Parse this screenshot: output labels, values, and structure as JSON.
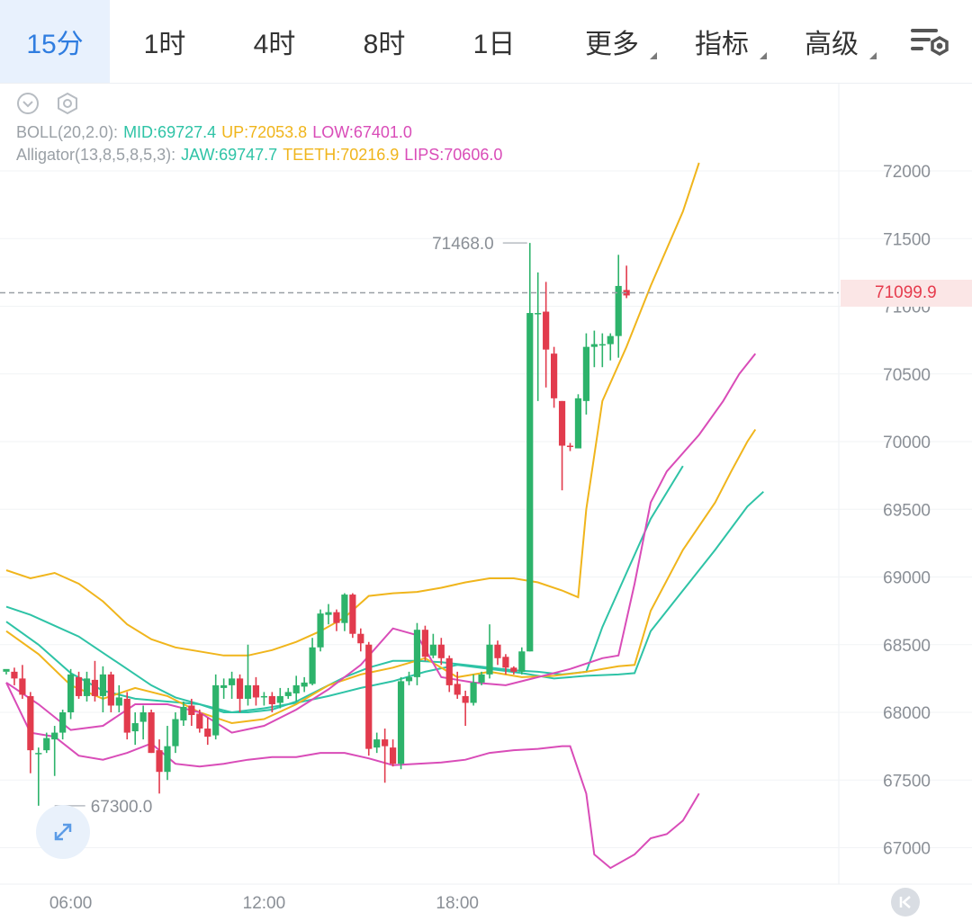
{
  "tabs": [
    {
      "label": "15分",
      "active": true,
      "dropdown": false
    },
    {
      "label": "1时",
      "active": false,
      "dropdown": false
    },
    {
      "label": "4时",
      "active": false,
      "dropdown": false
    },
    {
      "label": "8时",
      "active": false,
      "dropdown": false
    },
    {
      "label": "1日",
      "active": false,
      "dropdown": false
    },
    {
      "label": "更多",
      "active": false,
      "dropdown": true
    },
    {
      "label": "指标",
      "active": false,
      "dropdown": true
    },
    {
      "label": "高级",
      "active": false,
      "dropdown": true
    }
  ],
  "icons": {
    "settings": "chart-settings-icon",
    "collapse": "chevron-down-circle-icon",
    "indicator_settings": "hexagon-gear-icon",
    "expand": "expand-arrows-icon",
    "scroll_to_latest": "skip-to-latest-icon"
  },
  "legend": {
    "boll": {
      "name": "BOLL(20,2.0):",
      "mid": "MID:69727.4",
      "up": "UP:72053.8",
      "low": "LOW:67401.0"
    },
    "alligator": {
      "name": "Alligator(13,8,5,8,5,3):",
      "jaw": "JAW:69747.7",
      "teeth": "TEETH:70216.9",
      "lips": "LIPS:70606.0"
    }
  },
  "colors": {
    "up": "#2db36b",
    "down": "#e23b4d",
    "mid": "#2ec3a6",
    "band": "#f0b51c",
    "low": "#d94cb8",
    "jaw": "#2ec3a6",
    "teeth": "#f0b51c",
    "lips": "#d94cb8",
    "text_muted": "#9aa0a6",
    "current_price": "#e63b4d"
  },
  "current_price": "71099.9",
  "chart_data": {
    "type": "candlestick",
    "y_ticks": [
      72000,
      71500,
      71000,
      70500,
      70000,
      69500,
      69000,
      68500,
      68000,
      67500,
      67000
    ],
    "y_tick_labels": [
      "72000",
      "71500",
      "71000",
      "70500",
      "70000",
      "69500",
      "69000",
      "68500",
      "68000",
      "67500",
      "67000"
    ],
    "ylim": [
      66700,
      72500
    ],
    "x_labels": [
      "06:00",
      "12:00",
      "18:00"
    ],
    "x_label_bar_index": [
      8,
      32,
      56
    ],
    "high_label": "71468.0",
    "low_label": "67300.0",
    "current_price": 71099.9,
    "candles": [
      [
        68300,
        68320,
        68300,
        68280
      ],
      [
        68300,
        68250,
        68330,
        68200
      ],
      [
        68250,
        68130,
        68350,
        68100
      ],
      [
        68120,
        67720,
        68150,
        67550
      ],
      [
        67700,
        67700,
        67740,
        67310
      ],
      [
        67720,
        67810,
        67850,
        67700
      ],
      [
        67800,
        67850,
        67900,
        67530
      ],
      [
        67850,
        68000,
        68020,
        67800
      ],
      [
        68000,
        68280,
        68320,
        67950
      ],
      [
        68260,
        68120,
        68300,
        68100
      ],
      [
        68120,
        68250,
        68300,
        68080
      ],
      [
        68240,
        68120,
        68380,
        68080
      ],
      [
        68120,
        68280,
        68340,
        68000
      ],
      [
        68280,
        68050,
        68300,
        68000
      ],
      [
        68050,
        68110,
        68200,
        68000
      ],
      [
        68100,
        67850,
        68150,
        67800
      ],
      [
        67860,
        67920,
        68000,
        67760
      ],
      [
        67930,
        68000,
        68050,
        67800
      ],
      [
        68000,
        67700,
        68020,
        67700
      ],
      [
        67720,
        67560,
        67800,
        67400
      ],
      [
        67560,
        67750,
        67900,
        67500
      ],
      [
        67750,
        67950,
        68000,
        67700
      ],
      [
        67940,
        68040,
        68080,
        67900
      ],
      [
        68050,
        67980,
        68100,
        67900
      ],
      [
        67990,
        67880,
        68020,
        67850
      ],
      [
        67880,
        67820,
        67960,
        67760
      ],
      [
        67830,
        68200,
        68280,
        67800
      ],
      [
        68180,
        68200,
        68250,
        68100
      ],
      [
        68200,
        68250,
        68300,
        68100
      ],
      [
        68250,
        68100,
        68280,
        68000
      ],
      [
        68100,
        68200,
        68500,
        68050
      ],
      [
        68200,
        68110,
        68260,
        68050
      ],
      [
        68110,
        68120,
        68150,
        68050
      ],
      [
        68120,
        68060,
        68150,
        68000
      ],
      [
        68070,
        68120,
        68180,
        68030
      ],
      [
        68120,
        68150,
        68180,
        68100
      ],
      [
        68140,
        68200,
        68270,
        68080
      ],
      [
        68190,
        68220,
        68260,
        68150
      ],
      [
        68210,
        68480,
        68550,
        68200
      ],
      [
        68480,
        68730,
        68760,
        68450
      ],
      [
        68720,
        68740,
        68800,
        68650
      ],
      [
        68740,
        68660,
        68760,
        68600
      ],
      [
        68660,
        68870,
        68880,
        68600
      ],
      [
        68870,
        68580,
        68880,
        68550
      ],
      [
        68580,
        68510,
        68620,
        68450
      ],
      [
        68500,
        67730,
        68520,
        67680
      ],
      [
        67740,
        67800,
        67850,
        67700
      ],
      [
        67800,
        67750,
        67880,
        67480
      ],
      [
        67740,
        67620,
        67800,
        67600
      ],
      [
        67620,
        68230,
        68260,
        67580
      ],
      [
        68230,
        68260,
        68300,
        68200
      ],
      [
        68260,
        68610,
        68660,
        68200
      ],
      [
        68610,
        68410,
        68640,
        68380
      ],
      [
        68420,
        68500,
        68580,
        68400
      ],
      [
        68500,
        68400,
        68550,
        68350
      ],
      [
        68400,
        68200,
        68420,
        68150
      ],
      [
        68210,
        68130,
        68300,
        68100
      ],
      [
        68120,
        68070,
        68160,
        67900
      ],
      [
        68070,
        68220,
        68280,
        68050
      ],
      [
        68220,
        68280,
        68300,
        68200
      ],
      [
        68280,
        68500,
        68650,
        68250
      ],
      [
        68500,
        68400,
        68530,
        68350
      ],
      [
        68410,
        68330,
        68430,
        68280
      ],
      [
        68330,
        68300,
        68340,
        68280
      ],
      [
        68300,
        68450,
        68480,
        68280
      ],
      [
        68450,
        70950,
        71468,
        68450
      ],
      [
        70950,
        70950,
        71250,
        70300
      ],
      [
        70960,
        70680,
        71180,
        70400
      ],
      [
        70650,
        70320,
        70700,
        70250
      ],
      [
        70300,
        69970,
        70300,
        69640
      ],
      [
        69970,
        69960,
        69990,
        69930
      ],
      [
        69950,
        70320,
        70350,
        69950
      ],
      [
        70300,
        70700,
        70800,
        70200
      ],
      [
        70700,
        70720,
        70820,
        70550
      ],
      [
        70720,
        70720,
        70800,
        70550
      ],
      [
        70720,
        70780,
        70800,
        70600
      ],
      [
        70780,
        71150,
        71380,
        70620
      ],
      [
        71120,
        71080,
        71300,
        71060
      ]
    ],
    "boll": {
      "mid": [
        [
          0,
          68780
        ],
        [
          3,
          68720
        ],
        [
          6,
          68640
        ],
        [
          9,
          68560
        ],
        [
          12,
          68440
        ],
        [
          15,
          68320
        ],
        [
          18,
          68200
        ],
        [
          21,
          68110
        ],
        [
          24,
          68060
        ],
        [
          27,
          68000
        ],
        [
          30,
          68000
        ],
        [
          33,
          68020
        ],
        [
          36,
          68080
        ],
        [
          39,
          68170
        ],
        [
          42,
          68260
        ],
        [
          45,
          68330
        ],
        [
          48,
          68380
        ],
        [
          51,
          68380
        ],
        [
          54,
          68370
        ],
        [
          57,
          68350
        ],
        [
          60,
          68330
        ],
        [
          63,
          68310
        ],
        [
          66,
          68300
        ],
        [
          69,
          68280
        ],
        [
          72,
          68300
        ],
        [
          74,
          68630
        ],
        [
          77,
          69030
        ],
        [
          80,
          69430
        ],
        [
          84,
          69820
        ]
      ],
      "up": [
        [
          0,
          69050
        ],
        [
          3,
          68990
        ],
        [
          6,
          69030
        ],
        [
          9,
          68950
        ],
        [
          12,
          68820
        ],
        [
          15,
          68650
        ],
        [
          18,
          68540
        ],
        [
          21,
          68480
        ],
        [
          24,
          68450
        ],
        [
          27,
          68420
        ],
        [
          30,
          68420
        ],
        [
          33,
          68460
        ],
        [
          36,
          68520
        ],
        [
          39,
          68600
        ],
        [
          42,
          68700
        ],
        [
          45,
          68860
        ],
        [
          48,
          68880
        ],
        [
          51,
          68890
        ],
        [
          54,
          68920
        ],
        [
          57,
          68960
        ],
        [
          60,
          68990
        ],
        [
          63,
          68990
        ],
        [
          66,
          68960
        ],
        [
          69,
          68900
        ],
        [
          71,
          68850
        ],
        [
          72,
          69500
        ],
        [
          74,
          70300
        ],
        [
          77,
          70700
        ],
        [
          80,
          71150
        ],
        [
          84,
          71700
        ],
        [
          86,
          72060
        ]
      ],
      "low": [
        [
          0,
          68220
        ],
        [
          3,
          67850
        ],
        [
          6,
          67820
        ],
        [
          9,
          67680
        ],
        [
          12,
          67650
        ],
        [
          15,
          67700
        ],
        [
          18,
          67770
        ],
        [
          21,
          67620
        ],
        [
          24,
          67600
        ],
        [
          27,
          67620
        ],
        [
          30,
          67650
        ],
        [
          33,
          67670
        ],
        [
          36,
          67670
        ],
        [
          39,
          67700
        ],
        [
          42,
          67700
        ],
        [
          45,
          67660
        ],
        [
          48,
          67610
        ],
        [
          51,
          67620
        ],
        [
          54,
          67630
        ],
        [
          57,
          67650
        ],
        [
          60,
          67700
        ],
        [
          63,
          67720
        ],
        [
          66,
          67730
        ],
        [
          69,
          67750
        ],
        [
          70,
          67750
        ],
        [
          72,
          67400
        ],
        [
          73,
          66950
        ],
        [
          75,
          66850
        ],
        [
          78,
          66950
        ],
        [
          80,
          67070
        ],
        [
          82,
          67100
        ],
        [
          84,
          67200
        ],
        [
          86,
          67400
        ]
      ]
    },
    "alligator": {
      "jaw": [
        [
          0,
          68670
        ],
        [
          4,
          68500
        ],
        [
          8,
          68290
        ],
        [
          12,
          68160
        ],
        [
          16,
          68100
        ],
        [
          20,
          68080
        ],
        [
          24,
          68060
        ],
        [
          28,
          68000
        ],
        [
          32,
          68030
        ],
        [
          36,
          68070
        ],
        [
          40,
          68120
        ],
        [
          44,
          68180
        ],
        [
          48,
          68230
        ],
        [
          52,
          68300
        ],
        [
          56,
          68350
        ],
        [
          60,
          68320
        ],
        [
          64,
          68290
        ],
        [
          68,
          68250
        ],
        [
          72,
          68270
        ],
        [
          76,
          68280
        ],
        [
          78,
          68290
        ],
        [
          80,
          68600
        ],
        [
          84,
          68900
        ],
        [
          88,
          69200
        ],
        [
          92,
          69520
        ],
        [
          94,
          69630
        ]
      ],
      "teeth": [
        [
          0,
          68600
        ],
        [
          4,
          68430
        ],
        [
          8,
          68200
        ],
        [
          12,
          68100
        ],
        [
          16,
          68180
        ],
        [
          20,
          68120
        ],
        [
          24,
          68000
        ],
        [
          28,
          67920
        ],
        [
          32,
          67950
        ],
        [
          36,
          68060
        ],
        [
          40,
          68200
        ],
        [
          44,
          68280
        ],
        [
          48,
          68330
        ],
        [
          52,
          68400
        ],
        [
          56,
          68260
        ],
        [
          60,
          68300
        ],
        [
          64,
          68260
        ],
        [
          68,
          68270
        ],
        [
          72,
          68300
        ],
        [
          76,
          68340
        ],
        [
          78,
          68350
        ],
        [
          80,
          68750
        ],
        [
          84,
          69200
        ],
        [
          88,
          69550
        ],
        [
          90,
          69780
        ],
        [
          92,
          70000
        ],
        [
          93,
          70090
        ]
      ],
      "lips": [
        [
          0,
          68220
        ],
        [
          4,
          68060
        ],
        [
          8,
          67870
        ],
        [
          12,
          67900
        ],
        [
          16,
          68060
        ],
        [
          20,
          68060
        ],
        [
          24,
          68000
        ],
        [
          28,
          67850
        ],
        [
          32,
          67900
        ],
        [
          36,
          68020
        ],
        [
          40,
          68170
        ],
        [
          44,
          68350
        ],
        [
          48,
          68620
        ],
        [
          51,
          68570
        ],
        [
          54,
          68260
        ],
        [
          58,
          68220
        ],
        [
          62,
          68200
        ],
        [
          66,
          68260
        ],
        [
          70,
          68320
        ],
        [
          74,
          68400
        ],
        [
          76,
          68420
        ],
        [
          78,
          68950
        ],
        [
          80,
          69550
        ],
        [
          82,
          69780
        ],
        [
          86,
          70050
        ],
        [
          89,
          70300
        ],
        [
          91,
          70500
        ],
        [
          93,
          70650
        ]
      ]
    }
  }
}
